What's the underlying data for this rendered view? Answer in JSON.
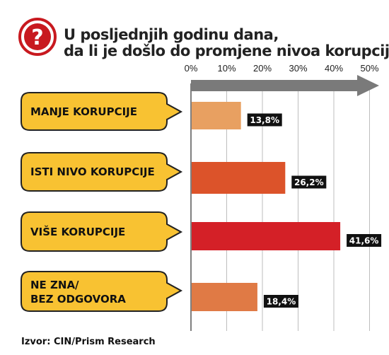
{
  "header": {
    "title_line1": "U posljednjih godinu dana,",
    "title_line2": "da li je došlo do promjene nivoa korupcije?",
    "icon": "question-mark-icon",
    "icon_color": "#c8191f"
  },
  "chart_data": {
    "type": "bar",
    "orientation": "horizontal",
    "categories": [
      "MANJE KORUPCIJE",
      "ISTI NIVO KORUPCIJE",
      "VIŠE KORUPCIJE",
      "NE ZNA/\nBEZ ODGOVORA"
    ],
    "values": [
      13.8,
      26.2,
      41.6,
      18.4
    ],
    "value_labels": [
      "13,8%",
      "26,2%",
      "41,6%",
      "18,4%"
    ],
    "bar_colors": [
      "#e8a061",
      "#dc532a",
      "#d42027",
      "#e07a45"
    ],
    "xticks": [
      "0%",
      "10%",
      "20%",
      "30%",
      "40%",
      "50%"
    ],
    "xlim": [
      0,
      50
    ],
    "grid": true,
    "label_box_color": "#f8c232"
  },
  "source": "Izvor: CIN/Prism Research"
}
